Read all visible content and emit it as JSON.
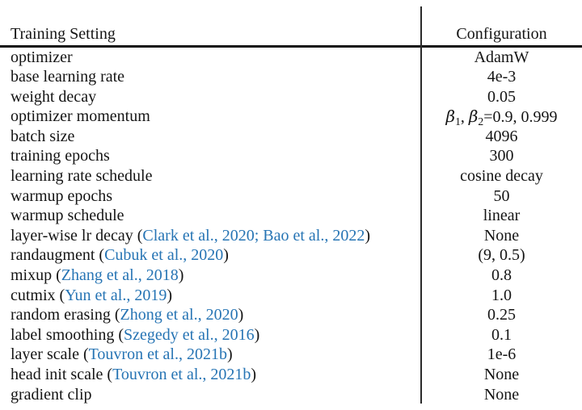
{
  "table": {
    "accent_color": "#2674b4",
    "header": {
      "setting": "Training Setting",
      "configuration": "Configuration"
    },
    "rows": [
      {
        "label": "optimizer",
        "value": "AdamW"
      },
      {
        "label": "base learning rate",
        "value": "4e-3"
      },
      {
        "label": "weight decay",
        "value": "0.05"
      },
      {
        "label": "optimizer momentum",
        "value": [
          {
            "text": "β",
            "italic": true
          },
          {
            "text": "1",
            "sub": true
          },
          {
            "text": ", "
          },
          {
            "text": "β",
            "italic": true
          },
          {
            "text": "2",
            "sub": true
          },
          {
            "text": "=0.9, 0.999"
          }
        ]
      },
      {
        "label": "batch size",
        "value": "4096"
      },
      {
        "label": "training epochs",
        "value": "300"
      },
      {
        "label": "learning rate schedule",
        "value": "cosine decay"
      },
      {
        "label": "warmup epochs",
        "value": "50"
      },
      {
        "label": "warmup schedule",
        "value": "linear"
      },
      {
        "label": [
          {
            "text": "layer-wise lr decay ("
          },
          {
            "text": "Clark et al., 2020",
            "link": true
          },
          {
            "text": "; ",
            "blue": true
          },
          {
            "text": "Bao et al., 2022",
            "link": true
          },
          {
            "text": ")"
          }
        ],
        "value": "None"
      },
      {
        "label": [
          {
            "text": "randaugment ("
          },
          {
            "text": "Cubuk et al., 2020",
            "link": true
          },
          {
            "text": ")"
          }
        ],
        "value": "(9, 0.5)"
      },
      {
        "label": [
          {
            "text": "mixup ("
          },
          {
            "text": "Zhang et al., 2018",
            "link": true
          },
          {
            "text": ")"
          }
        ],
        "value": "0.8"
      },
      {
        "label": [
          {
            "text": "cutmix ("
          },
          {
            "text": "Yun et al., 2019",
            "link": true
          },
          {
            "text": ")"
          }
        ],
        "value": "1.0"
      },
      {
        "label": [
          {
            "text": "random erasing ("
          },
          {
            "text": "Zhong et al., 2020",
            "link": true
          },
          {
            "text": ")"
          }
        ],
        "value": "0.25"
      },
      {
        "label": [
          {
            "text": "label smoothing ("
          },
          {
            "text": "Szegedy et al., 2016",
            "link": true
          },
          {
            "text": ")"
          }
        ],
        "value": "0.1"
      },
      {
        "label": [
          {
            "text": "layer scale ("
          },
          {
            "text": "Touvron et al., 2021b",
            "link": true
          },
          {
            "text": ")"
          }
        ],
        "value": "1e-6"
      },
      {
        "label": [
          {
            "text": "head init scale ("
          },
          {
            "text": "Touvron et al., 2021b",
            "link": true
          },
          {
            "text": ")"
          }
        ],
        "value": "None"
      },
      {
        "label": "gradient clip",
        "value": "None"
      }
    ]
  }
}
